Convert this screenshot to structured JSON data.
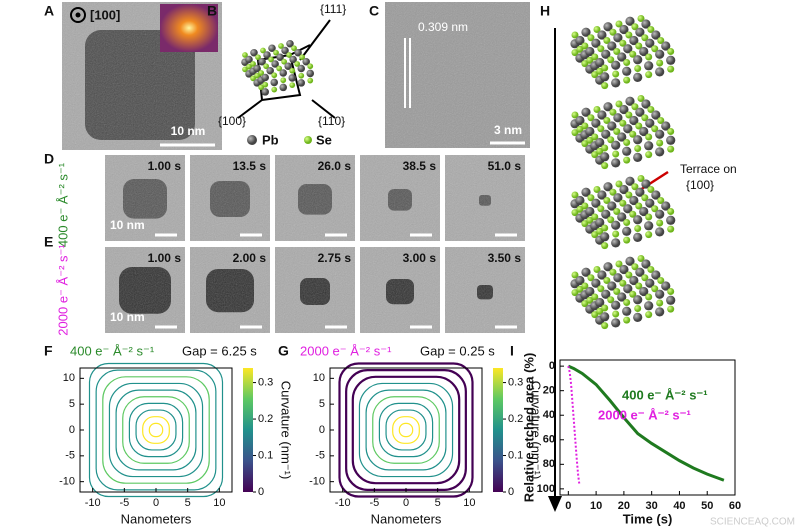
{
  "A": {
    "label": "A",
    "zone_axis": "[100]",
    "scale_bar": "10 nm"
  },
  "B": {
    "label": "B",
    "facets": [
      "{111}",
      "{100}",
      "{110}"
    ],
    "atoms": [
      "Pb",
      "Se"
    ]
  },
  "C": {
    "label": "C",
    "lattice_spacing": "0.309 nm",
    "scale_bar": "3 nm"
  },
  "D": {
    "label": "D",
    "dose": "400 e⁻ Å⁻² s⁻¹",
    "times": [
      "1.00 s",
      "13.5 s",
      "26.0 s",
      "38.5 s",
      "51.0 s"
    ],
    "scale_bar": "10 nm"
  },
  "E": {
    "label": "E",
    "dose": "2000 e⁻ Å⁻² s⁻¹",
    "times": [
      "1.00 s",
      "2.00 s",
      "2.75 s",
      "3.00 s",
      "3.50 s"
    ],
    "scale_bar": "10 nm"
  },
  "H": {
    "label": "H",
    "annotation": [
      "Terrace on",
      "{100}"
    ]
  },
  "F": {
    "label": "F",
    "dose": "400 e⁻ Å⁻² s⁻¹",
    "gap": "Gap = 6.25 s",
    "xlabel": "Nanometers",
    "colorbar_label": "Curvature (nm⁻¹)",
    "xlim": [
      -12,
      12
    ],
    "ylim": [
      -12,
      12
    ],
    "xticks": [
      -10,
      -5,
      0,
      5,
      10
    ],
    "yticks": [
      -10,
      -5,
      0,
      5,
      10
    ],
    "colorbar_lim": [
      0,
      0.34
    ],
    "colorbar_ticks": [
      0,
      0.1,
      0.2,
      0.3
    ]
  },
  "G": {
    "label": "G",
    "dose": "2000 e⁻ Å⁻² s⁻¹",
    "gap": "Gap = 0.25 s",
    "xlabel": "Nanometers",
    "colorbar_label": "Curvature (nm⁻¹)",
    "xlim": [
      -12,
      12
    ],
    "ylim": [
      -12,
      12
    ],
    "xticks": [
      -10,
      -5,
      0,
      5,
      10
    ],
    "yticks": [
      -10,
      -5,
      0,
      5,
      10
    ],
    "colorbar_lim": [
      0,
      0.34
    ],
    "colorbar_ticks": [
      0,
      0.1,
      0.2,
      0.3
    ]
  },
  "chart_data": {
    "type": "line",
    "label": "I",
    "xlabel": "Time (s)",
    "ylabel": "Relative etched area (%)",
    "xlim": [
      -3,
      60
    ],
    "ylim": [
      105,
      -5
    ],
    "xticks": [
      0,
      10,
      20,
      30,
      40,
      50,
      60
    ],
    "yticks": [
      0,
      20,
      40,
      60,
      80,
      100
    ],
    "series": [
      {
        "name": "400 e⁻ Å⁻² s⁻¹",
        "color": "#1f7a1f",
        "x": [
          0,
          2,
          5,
          10,
          15,
          20,
          25,
          30,
          35,
          40,
          45,
          50,
          56
        ],
        "values": [
          0,
          2,
          6,
          15,
          28,
          42,
          55,
          63,
          70,
          77,
          83,
          88,
          93
        ]
      },
      {
        "name": "2000 e⁻ Å⁻² s⁻¹",
        "color": "#e020e0",
        "x": [
          0,
          0.5,
          1,
          1.5,
          2,
          2.5,
          3,
          3.5,
          4
        ],
        "values": [
          0,
          5,
          15,
          30,
          45,
          60,
          75,
          88,
          97
        ]
      }
    ]
  },
  "watermark": "SCIENCEAQ.COM"
}
